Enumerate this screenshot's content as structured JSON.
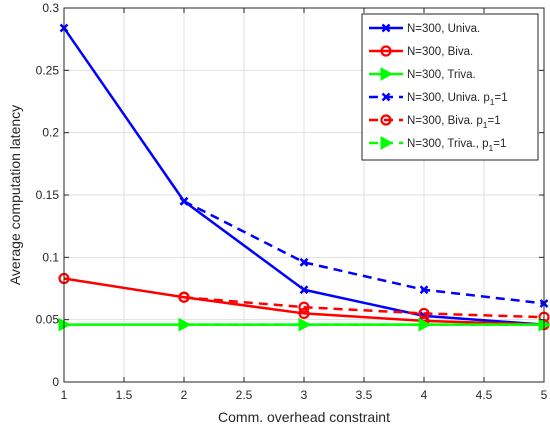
{
  "chart_data": {
    "type": "line",
    "title": "",
    "xlabel": "Comm. overhead constraint",
    "ylabel": "Average computation latency",
    "xlim": [
      1,
      5
    ],
    "ylim": [
      0,
      0.3
    ],
    "xticks": [
      1,
      1.5,
      2,
      2.5,
      3,
      3.5,
      4,
      4.5,
      5
    ],
    "yticks": [
      0,
      0.05,
      0.1,
      0.15,
      0.2,
      0.25,
      0.3
    ],
    "xtick_labels": [
      "1",
      "1.5",
      "2",
      "2.5",
      "3",
      "3.5",
      "4",
      "4.5",
      "5"
    ],
    "ytick_labels": [
      "0",
      "0.05",
      "0.1",
      "0.15",
      "0.2",
      "0.25",
      "0.3"
    ],
    "grid": true,
    "legend_position": "top-right",
    "x": [
      1,
      2,
      3,
      4,
      5
    ],
    "series": [
      {
        "name": "N=300, Univa.",
        "name_main": "N=300, Univa.",
        "name_sub": "",
        "name_tail": "",
        "color": "#0000ff",
        "dash": "solid",
        "marker": "x",
        "values": [
          0.284,
          0.145,
          0.074,
          0.053,
          0.046
        ]
      },
      {
        "name": "N=300, Biva.",
        "name_main": "N=300, Biva.",
        "name_sub": "",
        "name_tail": "",
        "color": "#ff0000",
        "dash": "solid",
        "marker": "circle",
        "values": [
          0.083,
          0.068,
          0.055,
          0.049,
          0.046
        ]
      },
      {
        "name": "N=300, Triva.",
        "name_main": "N=300, Triva.",
        "name_sub": "",
        "name_tail": "",
        "color": "#00ff00",
        "dash": "solid",
        "marker": "triangle-right",
        "values": [
          0.046,
          0.046,
          0.046,
          0.046,
          0.046
        ]
      },
      {
        "name": "N=300, Univa. p1=1",
        "name_main": "N=300, Univa. p",
        "name_sub": "1",
        "name_tail": "=1",
        "color": "#0000ff",
        "dash": "dashed",
        "marker": "x",
        "values": [
          null,
          0.145,
          0.096,
          0.074,
          0.063
        ]
      },
      {
        "name": "N=300, Biva. p1=1",
        "name_main": "N=300, Biva. p",
        "name_sub": "1",
        "name_tail": "=1",
        "color": "#ff0000",
        "dash": "dashed",
        "marker": "circle",
        "values": [
          null,
          0.068,
          0.06,
          0.055,
          0.052
        ]
      },
      {
        "name": "N=300, Triva., p1=1",
        "name_main": "N=300, Triva., p",
        "name_sub": "1",
        "name_tail": "=1",
        "color": "#00ff00",
        "dash": "dashed",
        "marker": "triangle-right",
        "values": [
          null,
          0.046,
          0.046,
          0.046,
          0.046
        ]
      }
    ]
  }
}
